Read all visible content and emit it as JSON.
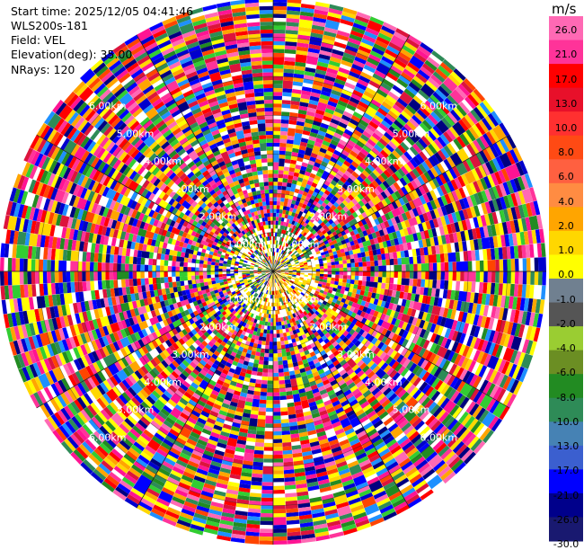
{
  "info": {
    "start_time": "Start time: 2025/12/05 04:41:46",
    "instrument": "WLS200s-181",
    "field": "Field: VEL",
    "elevation": "Elevation(deg): 35.00",
    "nrays": "NRays: 120"
  },
  "chart_data": {
    "type": "heatmap",
    "projection": "polar (PPI scan)",
    "field": "VEL",
    "rays": 120,
    "range_rings_km": [
      1.0,
      2.0,
      3.0,
      4.0,
      5.0,
      6.0
    ],
    "ring_labels": [
      "1.00km",
      "2.00km",
      "3.00km",
      "4.00km",
      "5.00km",
      "6.00km"
    ],
    "max_range_km": 7.0,
    "spoke_angles_deg": [
      0,
      30,
      60,
      90,
      120,
      150,
      180,
      210,
      240,
      270,
      300,
      330
    ],
    "colorbar": {
      "unit": "m/s",
      "tick_labels": [
        "26.0",
        "21.0",
        "17.0",
        "13.0",
        "10.0",
        "8.0",
        "6.0",
        "4.0",
        "2.0",
        "1.0",
        "0.0",
        "-1.0",
        "-2.0",
        "-4.0",
        "-6.0",
        "-8.0",
        "-10.0",
        "-13.0",
        "-17.0",
        "-21.0",
        "-26.0",
        "-30.0"
      ],
      "colors": [
        "#ff69b4",
        "#ff3399",
        "#ff0000",
        "#e8102a",
        "#ff3030",
        "#ff4a14",
        "#ff6040",
        "#ff8c42",
        "#ffa500",
        "#ffd700",
        "#ffff00",
        "#708090",
        "#555555",
        "#9acd32",
        "#6b8e23",
        "#228b22",
        "#2e8b57",
        "#4682b4",
        "#3b5fcf",
        "#0000ff",
        "#00008b",
        "#191970"
      ]
    },
    "palette": {
      "near_range_positive": [
        "#ffff00",
        "#ffd700",
        "#ffa500",
        "#ff8c00"
      ],
      "near_range_mixed": [
        "#ffd700",
        "#ff0000",
        "#228b22",
        "#2e8b57",
        "#0000ff",
        "#ffff00"
      ],
      "far_range_noise": [
        "#ff1493",
        "#ff0000",
        "#0000ff",
        "#ffff00",
        "#228b22",
        "#ff69b4",
        "#1e90ff",
        "#ff4500",
        "#000080",
        "#32cd32",
        "#ffa500",
        "#ff3399",
        "#2e8b57",
        "#ffd700",
        "#0000cd",
        "#dc143c"
      ]
    }
  }
}
